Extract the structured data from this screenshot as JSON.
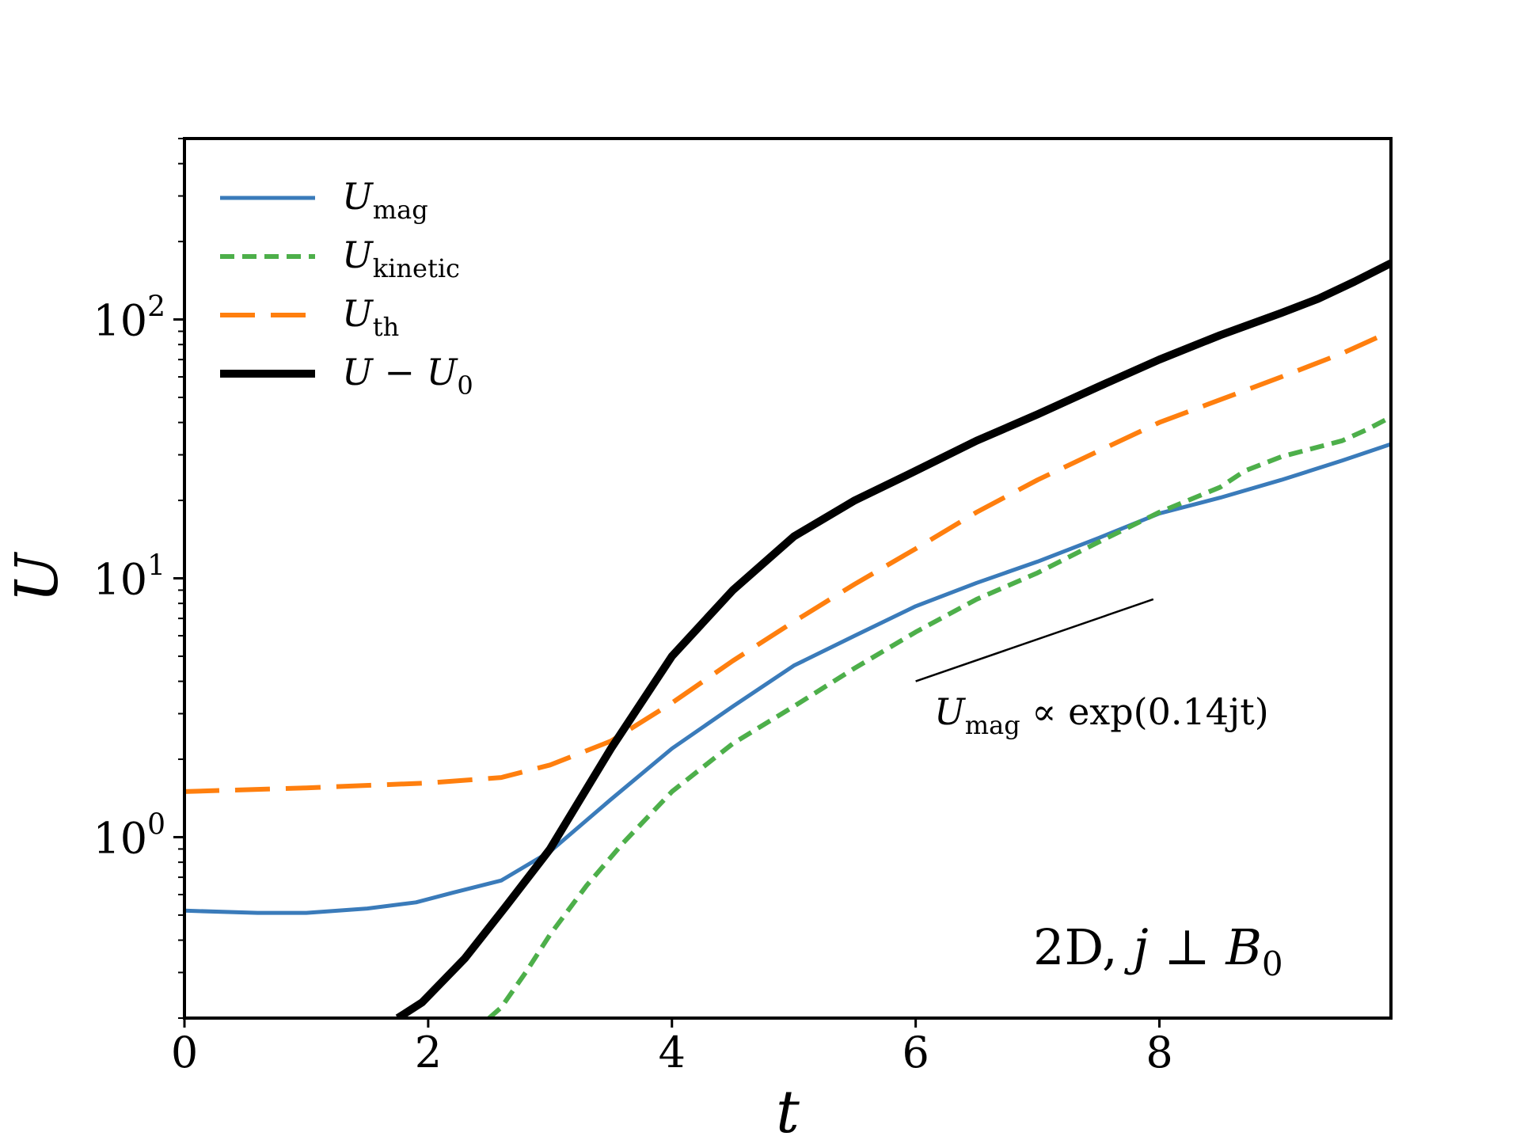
{
  "chart_data": {
    "type": "line",
    "title": "",
    "xlabel": "t",
    "ylabel": "U",
    "xlim": [
      0,
      9.9
    ],
    "ylim": [
      0.2,
      500
    ],
    "yscale": "log",
    "x_ticks": [
      0,
      2,
      4,
      6,
      8
    ],
    "y_ticks": [
      {
        "value": 1,
        "base": "10",
        "exp": "0"
      },
      {
        "value": 10,
        "base": "10",
        "exp": "1"
      },
      {
        "value": 100,
        "base": "10",
        "exp": "2"
      }
    ],
    "legend_position": "top-left",
    "series": [
      {
        "key": "mag",
        "name": "U_mag",
        "label_main": "U",
        "label_sub": "mag",
        "label_rest": "",
        "color": "#3a7bba",
        "style": "solid",
        "x": [
          0,
          0.6,
          1.0,
          1.5,
          1.9,
          2.2,
          2.6,
          3.0,
          3.5,
          4.0,
          4.5,
          5.0,
          5.5,
          6.0,
          6.5,
          7.0,
          7.5,
          8.0,
          8.5,
          9.0,
          9.5,
          9.9
        ],
        "y": [
          0.52,
          0.51,
          0.51,
          0.53,
          0.56,
          0.61,
          0.68,
          0.88,
          1.4,
          2.2,
          3.2,
          4.6,
          6.0,
          7.8,
          9.6,
          11.6,
          14.3,
          17.8,
          20.5,
          24.0,
          28.5,
          33.0
        ]
      },
      {
        "key": "kin",
        "name": "U_kinetic",
        "label_main": "U",
        "label_sub": "kinetic",
        "label_rest": "",
        "color": "#4daf4a",
        "style": "dash",
        "x": [
          2.5,
          2.6,
          2.8,
          3.0,
          3.3,
          3.6,
          4.0,
          4.5,
          5.0,
          5.5,
          6.0,
          6.5,
          7.0,
          7.5,
          8.0,
          8.5,
          8.7,
          9.0,
          9.5,
          9.7,
          9.9
        ],
        "y": [
          0.2,
          0.22,
          0.3,
          0.42,
          0.65,
          0.95,
          1.5,
          2.3,
          3.2,
          4.5,
          6.2,
          8.3,
          10.5,
          13.8,
          18.0,
          22.5,
          26.0,
          29.5,
          34.0,
          37.5,
          42.0
        ]
      },
      {
        "key": "th",
        "name": "U_th",
        "label_main": "U",
        "label_sub": "th",
        "label_rest": "",
        "color": "#ff7f0e",
        "style": "longdash",
        "x": [
          0,
          1.0,
          2.0,
          2.6,
          3.0,
          3.5,
          4.0,
          4.5,
          5.0,
          5.5,
          6.0,
          6.5,
          7.0,
          7.5,
          8.0,
          8.5,
          9.0,
          9.5,
          9.9
        ],
        "y": [
          1.5,
          1.55,
          1.62,
          1.7,
          1.9,
          2.35,
          3.3,
          4.8,
          6.8,
          9.5,
          13.0,
          18.0,
          24.0,
          31.0,
          40.0,
          49.0,
          60.0,
          74.0,
          90.0
        ]
      },
      {
        "key": "tot",
        "name": "U - U_0",
        "label_main": "U",
        "label_sub": "",
        "label_rest": " − U",
        "label_rest_sub": "0",
        "color": "#000000",
        "style": "thick",
        "x": [
          1.75,
          1.95,
          2.3,
          2.65,
          3.0,
          3.5,
          4.0,
          4.5,
          5.0,
          5.5,
          6.0,
          6.5,
          7.0,
          7.5,
          8.0,
          8.5,
          9.0,
          9.3,
          9.6,
          9.9
        ],
        "y": [
          0.2,
          0.23,
          0.34,
          0.55,
          0.9,
          2.2,
          5.0,
          9.0,
          14.5,
          20.0,
          26.0,
          34.0,
          43.0,
          55.0,
          70.0,
          87.0,
          106.0,
          120.0,
          140.0,
          165.0
        ]
      }
    ],
    "annotations": {
      "fit_line": {
        "x": [
          6.0,
          7.95
        ],
        "y": [
          4.0,
          8.3
        ],
        "color": "#000000"
      },
      "fit_label": {
        "main": "U",
        "sub": "mag",
        "rest": " ∝ exp(0.14jt)"
      },
      "case_label": {
        "pre": "2D, ",
        "j": "j",
        "perp": " ⊥ ",
        "B": "B",
        "B_sub": "0"
      }
    }
  }
}
